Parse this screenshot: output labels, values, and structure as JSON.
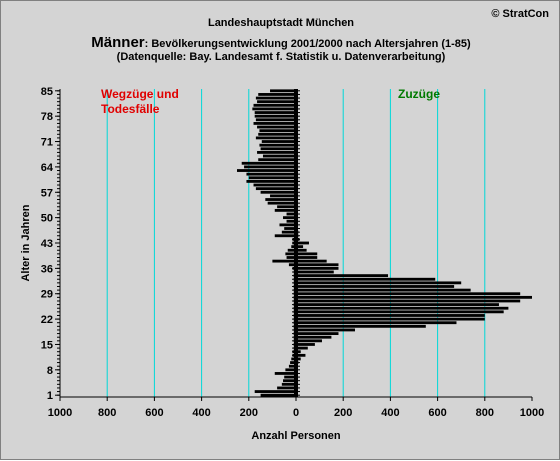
{
  "copyright": "© StratCon",
  "title_line1": "Landeshauptstadt München",
  "title_line2_lead": "Männer",
  "title_line2_rest": ": Bevölkerungsentwicklung 2001/2000 nach Altersjahren (1-85)",
  "title_line3": "(Datenquelle: Bay. Landesamt f. Statistik u. Datenverarbeitung)",
  "colors": {
    "background": "#d4d4d4",
    "bars": "#000000",
    "gridlines": "#00d8d8",
    "left_label": "#e00000",
    "right_label": "#007a00"
  },
  "chart_data": {
    "type": "bar",
    "orientation": "horizontal",
    "xlabel": "Anzahl Personen",
    "ylabel": "Alter in Jahren",
    "xlim": [
      -1000,
      1000
    ],
    "ylim": [
      1,
      85
    ],
    "xticks": [
      -1000,
      -800,
      -600,
      -400,
      -200,
      0,
      200,
      400,
      600,
      800,
      1000
    ],
    "xtick_labels": [
      "1000",
      "800",
      "600",
      "400",
      "200",
      "0",
      "200",
      "400",
      "600",
      "800",
      "1000"
    ],
    "yticks": [
      1,
      8,
      15,
      22,
      29,
      36,
      43,
      50,
      57,
      64,
      71,
      78,
      85
    ],
    "grid_vertical": true,
    "left_label": "Wegzüge und Todesfälle",
    "right_label": "Zuzüge",
    "ages": [
      1,
      2,
      3,
      4,
      5,
      6,
      7,
      8,
      9,
      10,
      11,
      12,
      13,
      14,
      15,
      16,
      17,
      18,
      19,
      20,
      21,
      22,
      23,
      24,
      25,
      26,
      27,
      28,
      29,
      30,
      31,
      32,
      33,
      34,
      35,
      36,
      37,
      38,
      39,
      40,
      41,
      42,
      43,
      44,
      45,
      46,
      47,
      48,
      49,
      50,
      51,
      52,
      53,
      54,
      55,
      56,
      57,
      58,
      59,
      60,
      61,
      62,
      63,
      64,
      65,
      66,
      67,
      68,
      69,
      70,
      71,
      72,
      73,
      74,
      75,
      76,
      77,
      78,
      79,
      80,
      81,
      82,
      83,
      84,
      85
    ],
    "outflow": [
      -150,
      -175,
      -80,
      -60,
      -55,
      -50,
      -90,
      -45,
      -30,
      -25,
      -20,
      -15,
      -15,
      -10,
      -10,
      -10,
      -10,
      -10,
      -10,
      -10,
      -10,
      -10,
      -10,
      -10,
      -10,
      -10,
      -10,
      -10,
      -10,
      -10,
      -10,
      -10,
      -10,
      -10,
      -10,
      -15,
      -30,
      -100,
      -40,
      -45,
      -35,
      -20,
      -15,
      -15,
      -90,
      -60,
      -50,
      -70,
      -40,
      -55,
      -40,
      -90,
      -80,
      -120,
      -130,
      -110,
      -150,
      -170,
      -180,
      -210,
      -200,
      -210,
      -250,
      -220,
      -230,
      -160,
      -140,
      -165,
      -150,
      -155,
      -145,
      -170,
      -160,
      -155,
      -165,
      -180,
      -170,
      -175,
      -175,
      -185,
      -180,
      -165,
      -170,
      -160,
      -110
    ],
    "inflow": [
      0,
      0,
      0,
      0,
      0,
      0,
      0,
      0,
      0,
      10,
      20,
      40,
      20,
      50,
      80,
      110,
      150,
      180,
      250,
      550,
      680,
      800,
      800,
      880,
      900,
      860,
      950,
      1000,
      950,
      740,
      670,
      700,
      590,
      390,
      160,
      180,
      180,
      130,
      90,
      90,
      45,
      30,
      55,
      15,
      10,
      10,
      0,
      0,
      0,
      0,
      0,
      0,
      0,
      0,
      0,
      0,
      0,
      0,
      0,
      0,
      0,
      0,
      0,
      0,
      0,
      0,
      0,
      0,
      0,
      0,
      0,
      0,
      0,
      0,
      0,
      0,
      0,
      0,
      0,
      0,
      0,
      0,
      0,
      0,
      0
    ]
  }
}
